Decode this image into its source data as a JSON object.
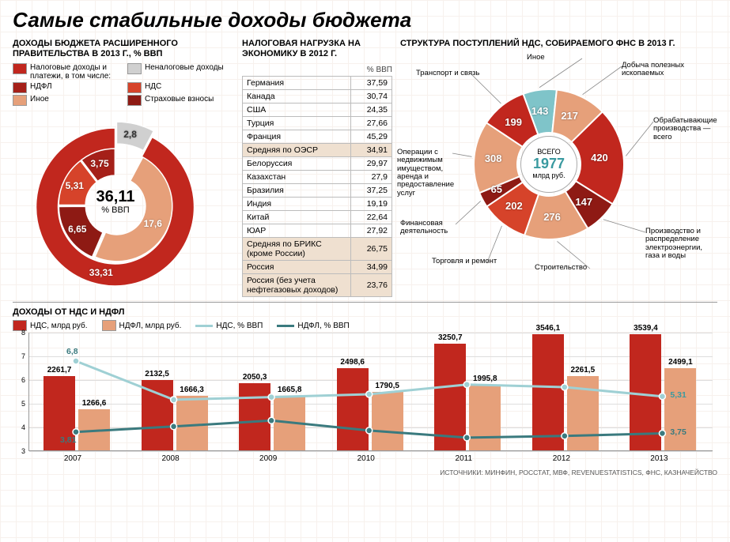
{
  "main_title": "Самые стабильные доходы бюджета",
  "left": {
    "title": "ДОХОДЫ БЮДЖЕТА РАСШИРЕННОГО ПРАВИТЕЛЬСТВА В 2013 Г., % ВВП",
    "legend": [
      {
        "label": "Налоговые доходы и платежи, в том числе:",
        "color": "#c1271e"
      },
      {
        "label": "Неналоговые доходы",
        "color": "#d0d0d0"
      },
      {
        "label": "НДФЛ",
        "color": "#a52019"
      },
      {
        "label": "НДС",
        "color": "#d6432a"
      },
      {
        "label": "Иное",
        "color": "#e6a07a"
      },
      {
        "label": "Страховые взносы",
        "color": "#8e1a14"
      }
    ],
    "donut": {
      "center_value": "36,11",
      "center_unit": "% ВВП",
      "outer": [
        {
          "label": "2,8",
          "value": 2.8,
          "color": "#d0d0d0"
        },
        {
          "label": "33,31",
          "value": 33.31,
          "color": "#c1271e"
        }
      ],
      "inner": [
        {
          "label": "17,6",
          "value": 17.6,
          "color": "#e6a07a"
        },
        {
          "label": "6,65",
          "value": 6.65,
          "color": "#8e1a14"
        },
        {
          "label": "5,31",
          "value": 5.31,
          "color": "#d6432a"
        },
        {
          "label": "3,75",
          "value": 3.75,
          "color": "#a52019"
        }
      ]
    }
  },
  "mid": {
    "title": "НАЛОГОВАЯ НАГРУЗКА НА ЭКОНОМИКУ В 2012 Г.",
    "unit": "% ВВП",
    "rows": [
      {
        "name": "Германия",
        "val": "37,59"
      },
      {
        "name": "Канада",
        "val": "30,74"
      },
      {
        "name": "США",
        "val": "24,35"
      },
      {
        "name": "Турция",
        "val": "27,66"
      },
      {
        "name": "Франция",
        "val": "45,29"
      },
      {
        "name": "Средняя по ОЭСР",
        "val": "34,91",
        "hi": true
      },
      {
        "name": "Белоруссия",
        "val": "29,97"
      },
      {
        "name": "Казахстан",
        "val": "27,9"
      },
      {
        "name": "Бразилия",
        "val": "37,25"
      },
      {
        "name": "Индия",
        "val": "19,19"
      },
      {
        "name": "Китай",
        "val": "22,64"
      },
      {
        "name": "ЮАР",
        "val": "27,92"
      },
      {
        "name": "Средняя по БРИКС (кроме России)",
        "val": "26,75",
        "hi": true
      },
      {
        "name": "Россия",
        "val": "34,99",
        "hi": true
      },
      {
        "name": "Россия (без учета нефтегазовых доходов)",
        "val": "23,76",
        "hi": true
      }
    ]
  },
  "right": {
    "title": "СТРУКТУРА ПОСТУПЛЕНИЙ НДС, СОБИРАЕМОГО ФНС  В 2013 Г.",
    "center_label": "ВСЕГО",
    "center_value": "1977",
    "center_unit": "млрд руб.",
    "slices": [
      {
        "label": "Иное",
        "val": 143,
        "color": "#7fc4c9"
      },
      {
        "label": "Добыча полезных ископаемых",
        "val": 217,
        "color": "#e6a07a"
      },
      {
        "label": "Обрабатывающие производства — всего",
        "val": 420,
        "color": "#c1271e"
      },
      {
        "label": "Производство и распределение электроэнергии, газа и воды",
        "val": 147,
        "color": "#8e1a14"
      },
      {
        "label": "Строительство",
        "val": 276,
        "color": "#e6a07a"
      },
      {
        "label": "Торговля и ремонт",
        "val": 202,
        "color": "#d6432a"
      },
      {
        "label": "Финансовая деятельность",
        "val": 65,
        "color": "#8e1a14"
      },
      {
        "label": "Операции с недвижимым имуществом, аренда и предоставление услуг",
        "val": 308,
        "color": "#e6a07a"
      },
      {
        "label": "Транспорт и связь",
        "val": 199,
        "color": "#c1271e"
      }
    ]
  },
  "bottom": {
    "title": "ДОХОДЫ ОТ НДС И НДФЛ",
    "legend": [
      {
        "label": "НДС, млрд руб.",
        "type": "bar",
        "color": "#c1271e"
      },
      {
        "label": "НДФЛ, млрд руб.",
        "type": "bar",
        "color": "#e6a07a"
      },
      {
        "label": "НДС, % ВВП",
        "type": "line",
        "color": "#9fd0d4"
      },
      {
        "label": "НДФЛ, % ВВП",
        "type": "line",
        "color": "#3a7a7e"
      }
    ],
    "y_ticks": [
      3,
      4,
      5,
      6,
      7,
      8
    ],
    "years": [
      "2007",
      "2008",
      "2009",
      "2010",
      "2011",
      "2012",
      "2013"
    ],
    "bars_nds": [
      2261.7,
      2132.5,
      2050.3,
      2498.6,
      3250.7,
      3546.1,
      3539.4
    ],
    "bars_ndfl": [
      1266.6,
      1666.3,
      1665.8,
      1790.5,
      1995.8,
      2261.5,
      2499.1
    ],
    "line_nds_pct": [
      6.8,
      5.17,
      5.28,
      5.4,
      5.81,
      5.7,
      5.31
    ],
    "line_ndfl_pct": [
      3.81,
      4.04,
      4.29,
      3.87,
      3.57,
      3.64,
      3.75
    ],
    "label_nds_first": "6,8",
    "label_ndfl_first": "3,81",
    "label_nds_last": "5,31",
    "label_ndfl_last": "3,75",
    "bar_max": 3600
  },
  "source": "ИСТОЧНИКИ: МИНФИН, РОССТАТ, МВФ, REVENUESTATISTICS, ФНС, КАЗНАЧЕЙСТВО"
}
